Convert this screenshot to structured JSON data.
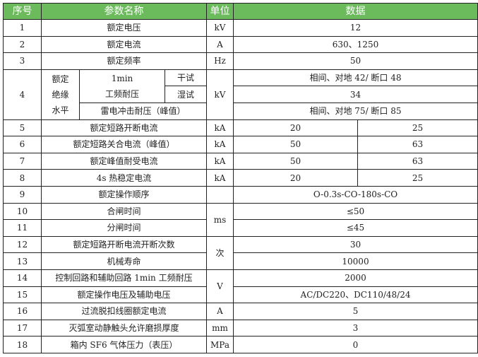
{
  "header": {
    "no": "序号",
    "name": "参数名称",
    "unit": "单位",
    "data": "数据"
  },
  "colors": {
    "header_bg": "#6bbb5c"
  },
  "rows": [
    {
      "no": "1",
      "name": "额定电压",
      "unit": "kV",
      "data": "12"
    },
    {
      "no": "2",
      "name": "额定电流",
      "unit": "A",
      "data": "630、1250"
    },
    {
      "no": "3",
      "name": "额定频率",
      "unit": "Hz",
      "data": "50"
    },
    {
      "no": "4",
      "group": [
        "额定",
        "绝缘",
        "水平"
      ],
      "sub1": "1min",
      "sub2": "工频耐压",
      "dry": "干试",
      "wet": "湿试",
      "impulse": "雷电冲击耐压（峰值）",
      "unit": "kV",
      "data_dry": "相间、对地 42/ 断口 48",
      "data_wet": "34",
      "data_impulse": "相间、对地 75/ 断口 85"
    },
    {
      "no": "5",
      "name": "额定短路开断电流",
      "unit": "kA",
      "a": "20",
      "b": "25"
    },
    {
      "no": "6",
      "name": "额定短路关合电流（峰值）",
      "unit": "kA",
      "a": "50",
      "b": "63"
    },
    {
      "no": "7",
      "name": "额定峰值耐受电流",
      "unit": "kA",
      "a": "50",
      "b": "63"
    },
    {
      "no": "8",
      "name": "4s 热稳定电流",
      "unit": "kA",
      "a": "20",
      "b": "25"
    },
    {
      "no": "9",
      "name": "额定操作顺序",
      "unit": "",
      "data": "O-0.3s-CO-180s-CO"
    },
    {
      "no": "10",
      "name": "合闸时间",
      "unit": "ms",
      "data": "≤50"
    },
    {
      "no": "11",
      "name": "分闸时间",
      "data": "≤45"
    },
    {
      "no": "12",
      "name": "额定短路开断电流开断次数",
      "unit": "次",
      "data": "30"
    },
    {
      "no": "13",
      "name": "机械寿命",
      "data": "10000"
    },
    {
      "no": "14",
      "name": "控制回路和辅助回路 1min 工频耐压",
      "unit": "V",
      "data": "2000"
    },
    {
      "no": "15",
      "name": "额定操作电压及辅助电压",
      "data": "AC/DC220、DC110/48/24"
    },
    {
      "no": "16",
      "name": "过流脱扣线圈额定电流",
      "unit": "A",
      "data": "5"
    },
    {
      "no": "17",
      "name": "灭弧室动静触头允许磨损厚度",
      "unit": "mm",
      "data": "3"
    },
    {
      "no": "18",
      "name": "箱内 SF6 气体压力（表压）",
      "unit": "MPa",
      "data": "0"
    }
  ]
}
